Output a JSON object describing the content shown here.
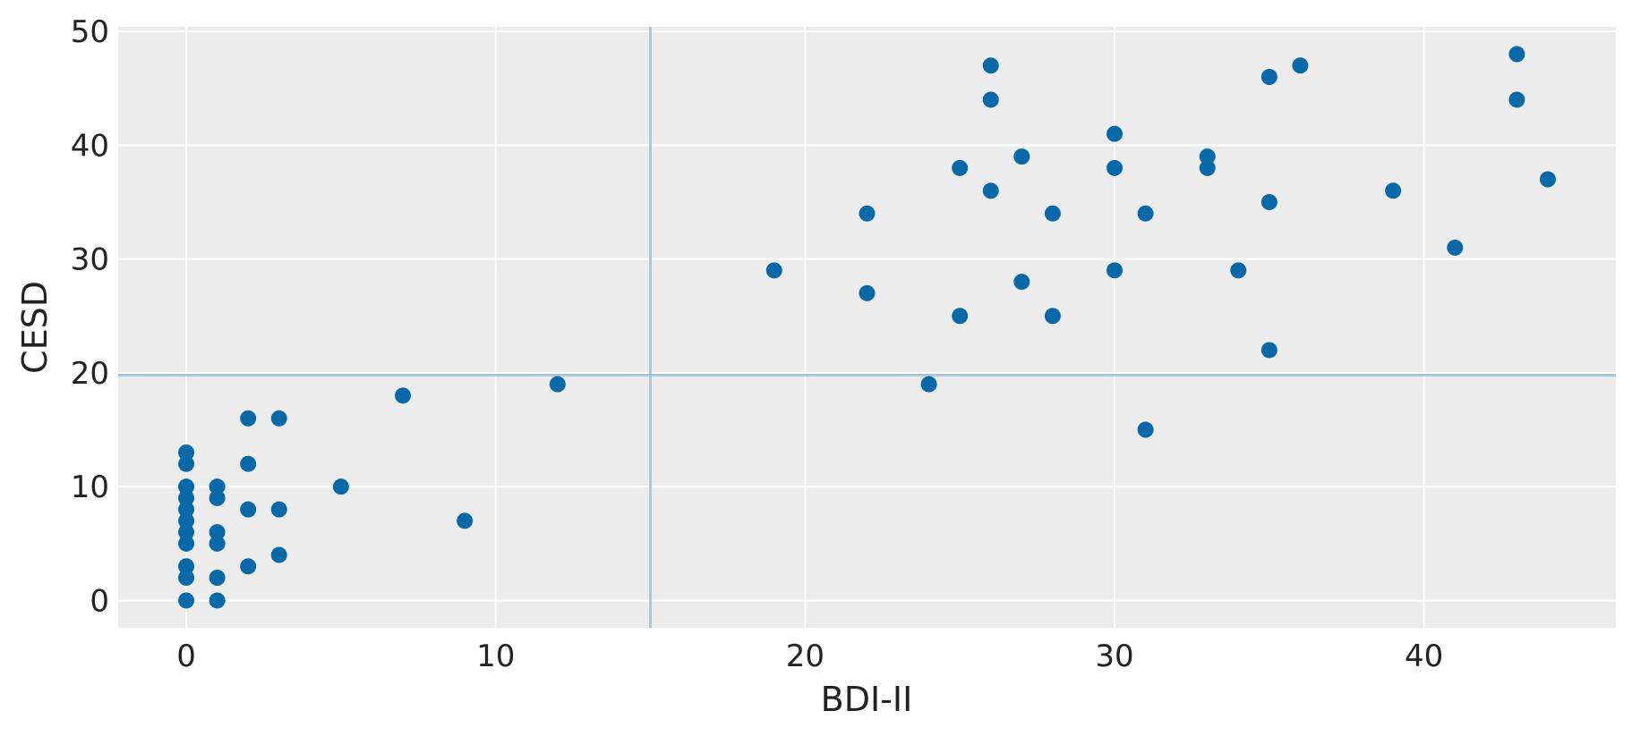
{
  "chart_data": {
    "type": "scatter",
    "xlabel": "BDI-II",
    "ylabel": "CESD",
    "xlim": [
      -2.2,
      46.2
    ],
    "ylim": [
      -2.4,
      50.4
    ],
    "xticks": [
      0,
      10,
      20,
      30,
      40
    ],
    "yticks": [
      0,
      10,
      20,
      30,
      40,
      50
    ],
    "grid": true,
    "reference_lines": {
      "vertical_x": 15,
      "horizontal_y": 19.8
    },
    "colors": {
      "points": "#0868a8",
      "reference_lines": "#9dc3db",
      "plot_background": "#ececec",
      "grid": "#ffffff"
    },
    "x": [
      0,
      0,
      0,
      0,
      0,
      0,
      0,
      0,
      0,
      0,
      0,
      1,
      1,
      1,
      1,
      1,
      1,
      2,
      2,
      2,
      2,
      3,
      3,
      3,
      5,
      7,
      9,
      12,
      19,
      22,
      22,
      24,
      25,
      25,
      26,
      26,
      26,
      27,
      27,
      28,
      28,
      30,
      30,
      30,
      31,
      31,
      33,
      33,
      34,
      35,
      35,
      35,
      36,
      39,
      41,
      43,
      43,
      44
    ],
    "y": [
      13,
      12,
      10,
      9,
      8,
      7,
      6,
      5,
      3,
      2,
      0,
      10,
      9,
      6,
      5,
      2,
      0,
      16,
      12,
      8,
      3,
      16,
      8,
      4,
      10,
      18,
      7,
      19,
      29,
      34,
      27,
      19,
      38,
      25,
      47,
      44,
      36,
      39,
      28,
      34,
      25,
      41,
      38,
      29,
      34,
      15,
      39,
      38,
      29,
      46,
      35,
      22,
      47,
      36,
      31,
      48,
      44,
      37
    ]
  }
}
